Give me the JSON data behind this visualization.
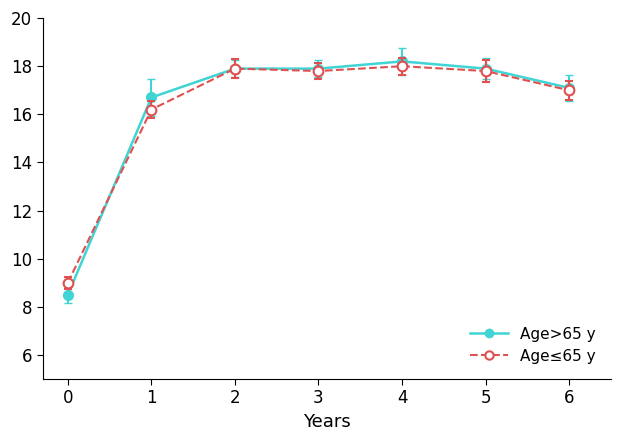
{
  "x": [
    0,
    1,
    2,
    3,
    4,
    5,
    6
  ],
  "age_gt65_y": [
    8.5,
    16.7,
    17.9,
    17.9,
    18.2,
    17.9,
    17.1
  ],
  "age_gt65_yerr": [
    0.35,
    0.75,
    0.35,
    0.35,
    0.55,
    0.45,
    0.55
  ],
  "age_le65_y": [
    9.0,
    16.2,
    17.9,
    17.8,
    18.0,
    17.8,
    17.0
  ],
  "age_le65_yerr": [
    0.25,
    0.35,
    0.4,
    0.35,
    0.35,
    0.45,
    0.4
  ],
  "color_gt65": "#40d4d4",
  "color_le65": "#e05050",
  "ylim": [
    5,
    20
  ],
  "xlim": [
    -0.3,
    6.5
  ],
  "yticks": [
    6,
    8,
    10,
    12,
    14,
    16,
    18,
    20
  ],
  "xticks": [
    0,
    1,
    2,
    3,
    4,
    5,
    6
  ],
  "xlabel": "Years",
  "legend_gt65": "Age>65 y",
  "legend_le65": "Age≤65 y"
}
